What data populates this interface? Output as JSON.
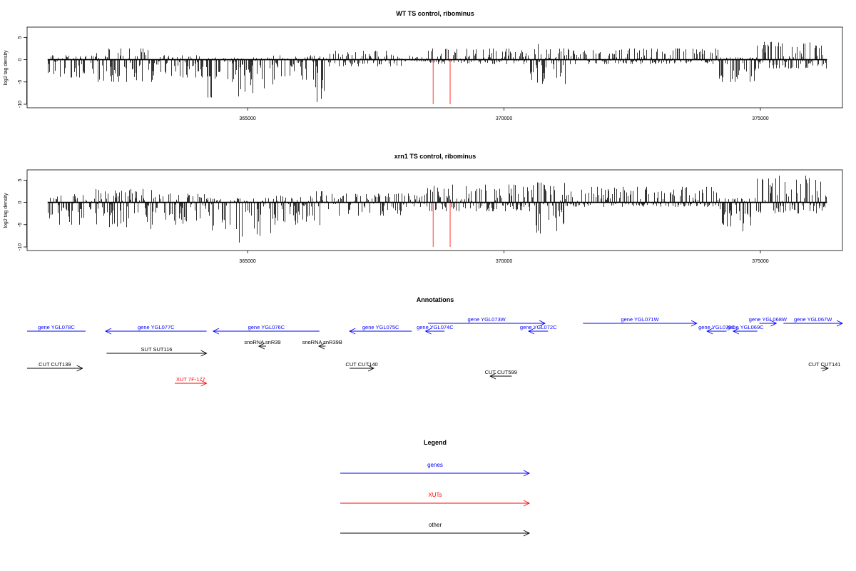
{
  "colors": {
    "gene": "#0000ff",
    "xut": "#ff0000",
    "other": "#000000",
    "marker": "#ff6f6f"
  },
  "chart_data": [
    {
      "type": "bar",
      "title": "WT TS control, ribominus",
      "xlabel": "",
      "ylabel": "log2 tag density",
      "xlim": [
        360700,
        376600
      ],
      "ylim": [
        -10,
        6.5
      ],
      "y_ticks": [
        5,
        0,
        -5,
        -10
      ],
      "y_tick_labels": [
        "5",
        "0",
        "-5",
        "-10"
      ],
      "x_ticks": [
        365000,
        370000,
        375000
      ],
      "x_tick_labels": [
        "365000",
        "370000",
        "375000"
      ],
      "marker_lines_x": [
        368620,
        368950
      ],
      "segments": [
        {
          "x0": 361100,
          "x1": 362000,
          "lo": -4,
          "hi": 1
        },
        {
          "x0": 362000,
          "x1": 363200,
          "lo": -5,
          "hi": 2.5
        },
        {
          "x0": 363200,
          "x1": 364200,
          "lo": -4,
          "hi": 1
        },
        {
          "x0": 364200,
          "x1": 364400,
          "lo": -8.5,
          "hi": 0.5
        },
        {
          "x0": 364400,
          "x1": 364800,
          "lo": -5,
          "hi": 0.5
        },
        {
          "x0": 364800,
          "x1": 365000,
          "lo": -8.5,
          "hi": 0.5
        },
        {
          "x0": 365000,
          "x1": 365500,
          "lo": -7.5,
          "hi": 0.5
        },
        {
          "x0": 365500,
          "x1": 366300,
          "lo": -4.5,
          "hi": 1
        },
        {
          "x0": 366300,
          "x1": 366500,
          "lo": -9.5,
          "hi": 1
        },
        {
          "x0": 366500,
          "x1": 368000,
          "lo": -1.5,
          "hi": 2
        },
        {
          "x0": 368000,
          "x1": 368500,
          "lo": -0.5,
          "hi": 1
        },
        {
          "x0": 368500,
          "x1": 370500,
          "lo": -1,
          "hi": 2.5
        },
        {
          "x0": 370500,
          "x1": 371200,
          "lo": -5.5,
          "hi": 3.5
        },
        {
          "x0": 371200,
          "x1": 374200,
          "lo": -1,
          "hi": 2.5
        },
        {
          "x0": 374200,
          "x1": 374900,
          "lo": -5,
          "hi": 0.5
        },
        {
          "x0": 374900,
          "x1": 376300,
          "lo": -2,
          "hi": 4
        }
      ]
    },
    {
      "type": "bar",
      "title": "xrn1 TS control, ribominus",
      "xlabel": "",
      "ylabel": "log2 tag density",
      "xlim": [
        360700,
        376600
      ],
      "ylim": [
        -10,
        6.5
      ],
      "y_ticks": [
        5,
        0,
        -5,
        -10
      ],
      "y_tick_labels": [
        "5",
        "0",
        "-5",
        "-10"
      ],
      "x_ticks": [
        365000,
        370000,
        375000
      ],
      "x_tick_labels": [
        "365000",
        "370000",
        "375000"
      ],
      "marker_lines_x": [
        368620,
        368950
      ],
      "segments": [
        {
          "x0": 361100,
          "x1": 362000,
          "lo": -5,
          "hi": 2
        },
        {
          "x0": 362000,
          "x1": 363200,
          "lo": -6,
          "hi": 3
        },
        {
          "x0": 363200,
          "x1": 364200,
          "lo": -5,
          "hi": 2
        },
        {
          "x0": 364200,
          "x1": 364400,
          "lo": -9.5,
          "hi": 1
        },
        {
          "x0": 364400,
          "x1": 364800,
          "lo": -6,
          "hi": 1
        },
        {
          "x0": 364800,
          "x1": 365000,
          "lo": -9,
          "hi": 1
        },
        {
          "x0": 365000,
          "x1": 365500,
          "lo": -7.5,
          "hi": 1
        },
        {
          "x0": 365500,
          "x1": 366300,
          "lo": -5,
          "hi": 1.5
        },
        {
          "x0": 366300,
          "x1": 366500,
          "lo": -8,
          "hi": 2.5
        },
        {
          "x0": 366500,
          "x1": 368000,
          "lo": -3,
          "hi": 2
        },
        {
          "x0": 368000,
          "x1": 368500,
          "lo": -1,
          "hi": 2
        },
        {
          "x0": 368500,
          "x1": 370500,
          "lo": -2,
          "hi": 4
        },
        {
          "x0": 370500,
          "x1": 371200,
          "lo": -7,
          "hi": 4.5
        },
        {
          "x0": 371200,
          "x1": 374200,
          "lo": -1,
          "hi": 3.5
        },
        {
          "x0": 374200,
          "x1": 374900,
          "lo": -6.5,
          "hi": 1
        },
        {
          "x0": 374900,
          "x1": 376300,
          "lo": -2.5,
          "hi": 6
        }
      ]
    }
  ],
  "annotations": {
    "title": "Annotations",
    "items": [
      {
        "label": "gene YGL078C",
        "color": "gene",
        "strand": "-",
        "start": 360700,
        "end": 361840,
        "row": 0
      },
      {
        "label": "gene YGL077C",
        "color": "gene",
        "strand": "-",
        "start": 362230,
        "end": 364200,
        "row": 0
      },
      {
        "label": "gene YGL076C",
        "color": "gene",
        "strand": "-",
        "start": 364330,
        "end": 366400,
        "row": 0
      },
      {
        "label": "gene YGL075C",
        "color": "gene",
        "strand": "-",
        "start": 366990,
        "end": 368200,
        "row": 0
      },
      {
        "label": "gene YGL074C",
        "color": "gene",
        "strand": "-",
        "start": 368470,
        "end": 368840,
        "row": 0
      },
      {
        "label": "gene YGL073W",
        "color": "gene",
        "strand": "+",
        "start": 368520,
        "end": 370800,
        "row": -1
      },
      {
        "label": "gene YGL072C",
        "color": "gene",
        "strand": "-",
        "start": 370480,
        "end": 370860,
        "row": 0
      },
      {
        "label": "gene YGL071W",
        "color": "gene",
        "strand": "+",
        "start": 371540,
        "end": 373760,
        "row": -1
      },
      {
        "label": "gene YGL070C",
        "color": "gene",
        "strand": "-",
        "start": 373960,
        "end": 374340,
        "row": 0
      },
      {
        "label": "gene YGL069C",
        "color": "gene",
        "strand": "-",
        "start": 374470,
        "end": 374940,
        "row": 0
      },
      {
        "label": "gene YGL068W",
        "color": "gene",
        "strand": "+",
        "start": 374980,
        "end": 375310,
        "row": -1
      },
      {
        "label": "gene YGL067W",
        "color": "gene",
        "strand": "+",
        "start": 375450,
        "end": 376600,
        "row": -1
      },
      {
        "label": "snoRNA snR39",
        "color": "other",
        "strand": "-",
        "start": 365220,
        "end": 365360,
        "row": 1
      },
      {
        "label": "snoRNA snR39B",
        "color": "other",
        "strand": "-",
        "start": 366390,
        "end": 366520,
        "row": 1
      },
      {
        "label": "SUT SUT116",
        "color": "other",
        "strand": "+",
        "start": 362250,
        "end": 364200,
        "row": 2
      },
      {
        "label": "CUT CUT139",
        "color": "other",
        "strand": "+",
        "start": 360700,
        "end": 361780,
        "row": 3
      },
      {
        "label": "CUT CUT140",
        "color": "other",
        "strand": "+",
        "start": 366990,
        "end": 367460,
        "row": 3
      },
      {
        "label": "CUT CUT599",
        "color": "other",
        "strand": "-",
        "start": 369730,
        "end": 370150,
        "row": 4
      },
      {
        "label": "CUT CUT141",
        "color": "other",
        "strand": "+",
        "start": 376180,
        "end": 376320,
        "row": 3
      },
      {
        "label": "XUT 7F-177",
        "color": "xut",
        "strand": "+",
        "start": 363580,
        "end": 364200,
        "row": 5
      }
    ]
  },
  "legend": {
    "title": "Legend",
    "items": [
      {
        "label": "genes",
        "color": "gene"
      },
      {
        "label": "XUTs",
        "color": "xut"
      },
      {
        "label": "other",
        "color": "other"
      }
    ]
  }
}
